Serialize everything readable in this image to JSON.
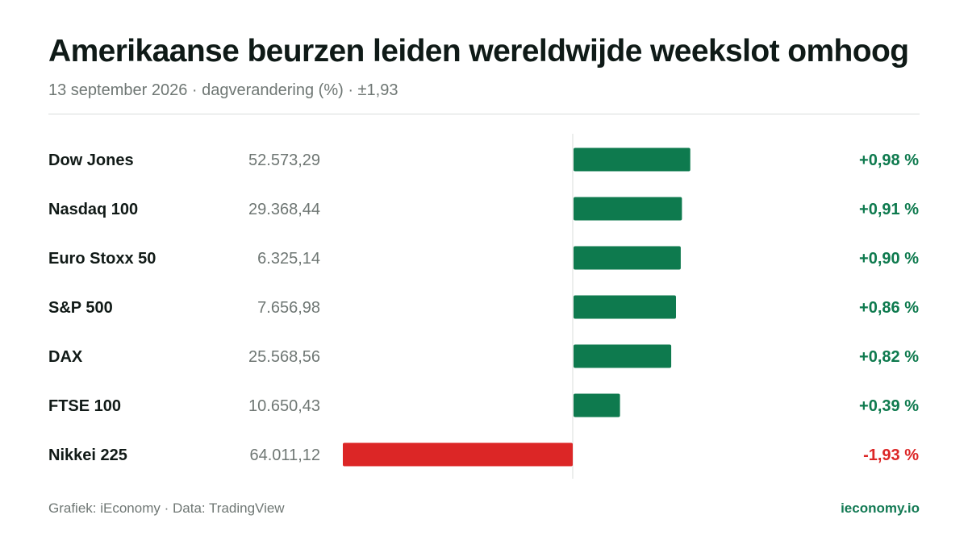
{
  "header": {
    "title": "Amerikaanse beurzen leiden wereldwijde weekslot omhoog",
    "subtitle": "13 september 2026 · dagverandering (%) · ±1,93"
  },
  "footer": {
    "source": "Grafiek: iEconomy · Data: TradingView",
    "brand": "ieconomy.io"
  },
  "colors": {
    "positive": "#0e7a4e",
    "negative": "#dc2626",
    "label": "#111a17",
    "value": "#6f7774"
  },
  "chart_data": {
    "type": "bar",
    "orientation": "horizontal",
    "xlim": [
      -1.93,
      1.93
    ],
    "grid": false,
    "categories": [
      "Dow Jones",
      "Nasdaq 100",
      "Euro Stoxx 50",
      "S&P 500",
      "DAX",
      "FTSE 100",
      "Nikkei 225"
    ],
    "levels": [
      "52.573,29",
      "29.368,44",
      "6.325,14",
      "7.656,98",
      "25.568,56",
      "10.650,43",
      "64.011,12"
    ],
    "values": [
      0.98,
      0.91,
      0.9,
      0.86,
      0.82,
      0.39,
      -1.93
    ],
    "value_labels": [
      "+0,98 %",
      "+0,91 %",
      "+0,90 %",
      "+0,86 %",
      "+0,82 %",
      "+0,39 %",
      "-1,93 %"
    ]
  }
}
